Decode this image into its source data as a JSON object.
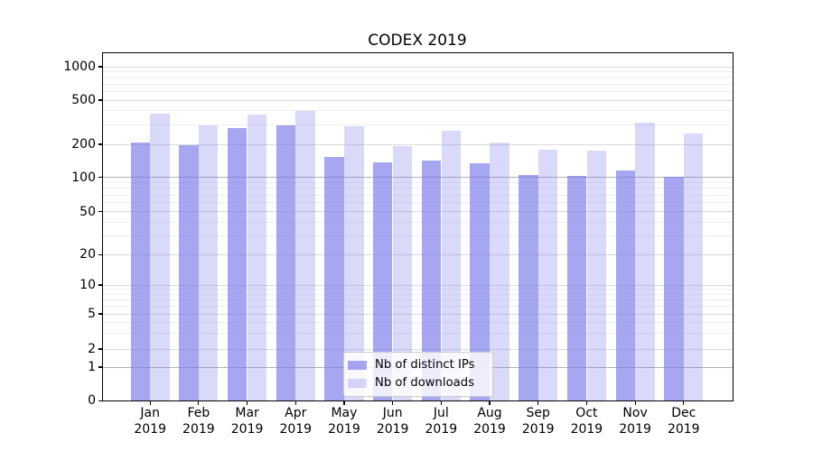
{
  "title": "CODEX 2019",
  "legend": {
    "items": [
      {
        "label": "Nb of distinct IPs",
        "color": "rgba(120,120,233,0.66)"
      },
      {
        "label": "Nb of downloads",
        "color": "rgba(120,120,233,0.28)"
      }
    ]
  },
  "colors": {
    "bar_distinct_ips_apparent": "#a6a6f1",
    "bar_downloads_apparent": "#d9d8f9",
    "grid_minor": "#efefef",
    "grid_major": "#dadada",
    "grid_emphasis": "#b0b0b0",
    "spine": "#000000",
    "text": "#000000"
  },
  "chart_data": {
    "type": "bar",
    "title": "CODEX 2019",
    "xlabel": "",
    "ylabel": "",
    "y_scale": "symlog",
    "ylim": [
      0,
      1350
    ],
    "grid": true,
    "legend_position": "lower center",
    "categories": [
      "Jan 2019",
      "Feb 2019",
      "Mar 2019",
      "Apr 2019",
      "May 2019",
      "Jun 2019",
      "Jul 2019",
      "Aug 2019",
      "Sep 2019",
      "Oct 2019",
      "Nov 2019",
      "Dec 2019"
    ],
    "series": [
      {
        "name": "Nb of distinct IPs",
        "color": "rgba(120,120,233,0.66)",
        "values": [
          207,
          194,
          276,
          293,
          152,
          137,
          142,
          134,
          105,
          103,
          115,
          100
        ]
      },
      {
        "name": "Nb of downloads",
        "color": "rgba(120,120,233,0.28)",
        "values": [
          372,
          291,
          370,
          394,
          290,
          192,
          260,
          207,
          178,
          174,
          310,
          248
        ]
      }
    ],
    "y_ticks": [
      1000,
      500,
      200,
      100,
      50,
      20,
      10,
      5,
      2,
      1,
      0
    ],
    "y_minor_ticks": [
      900,
      800,
      700,
      600,
      400,
      300,
      90,
      80,
      70,
      60,
      40,
      30,
      9,
      8,
      7,
      6,
      4,
      3
    ],
    "y_emphasized_gridlines": [
      100,
      1
    ]
  }
}
